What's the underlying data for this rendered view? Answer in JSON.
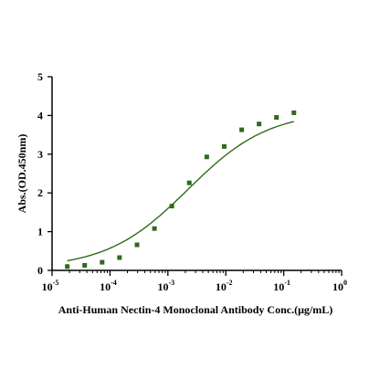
{
  "chart_data": {
    "type": "scatter",
    "title": "",
    "xlabel": "Anti-Human Nectin-4 Monoclonal Antibody Conc.(μg/mL)",
    "ylabel": "Abs.(OD.450nm)",
    "x_scale": "log",
    "xlim": [
      1e-05,
      1
    ],
    "ylim": [
      0,
      5
    ],
    "grid": false,
    "x_ticks": [
      {
        "base": "10",
        "exp": "-5",
        "value": 1e-05
      },
      {
        "base": "10",
        "exp": "-4",
        "value": 0.0001
      },
      {
        "base": "10",
        "exp": "-3",
        "value": 0.001
      },
      {
        "base": "10",
        "exp": "-2",
        "value": 0.01
      },
      {
        "base": "10",
        "exp": "-1",
        "value": 0.1
      },
      {
        "base": "10",
        "exp": "0",
        "value": 1
      }
    ],
    "y_ticks": [
      "0",
      "1",
      "2",
      "3",
      "4",
      "5"
    ],
    "series": [
      {
        "color": "#2e6b1a",
        "marker": "square",
        "fit": "4PL curve",
        "x": [
          1.83e-05,
          3.66e-05,
          7.32e-05,
          0.000146,
          0.000293,
          0.000586,
          0.00117,
          0.00234,
          0.00469,
          0.00938,
          0.0188,
          0.0375,
          0.075,
          0.15
        ],
        "y": [
          0.1,
          0.13,
          0.21,
          0.33,
          0.66,
          1.08,
          1.66,
          2.26,
          2.93,
          3.2,
          3.63,
          3.78,
          3.95,
          4.07
        ]
      }
    ]
  }
}
